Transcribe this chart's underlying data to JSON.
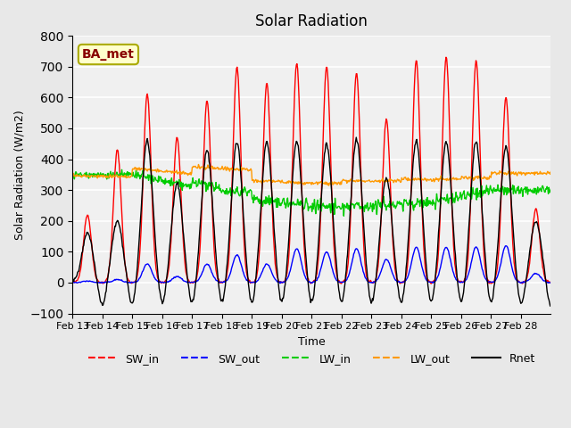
{
  "title": "Solar Radiation",
  "xlabel": "Time",
  "ylabel": "Solar Radiation (W/m2)",
  "ylim": [
    -100,
    800
  ],
  "yticks": [
    -100,
    0,
    100,
    200,
    300,
    400,
    500,
    600,
    700,
    800
  ],
  "background_color": "#e8e8e8",
  "plot_bg_color": "#f0f0f0",
  "annotation_text": "BA_met",
  "annotation_bg": "#ffffcc",
  "annotation_border": "#aaaa00",
  "annotation_text_color": "#880000",
  "colors": {
    "SW_in": "#ff0000",
    "SW_out": "#0000ff",
    "LW_in": "#00cc00",
    "LW_out": "#ff9900",
    "Rnet": "#000000"
  },
  "x_tick_labels": [
    "Feb 13",
    "Feb 14",
    "Feb 15",
    "Feb 16",
    "Feb 17",
    "Feb 18",
    "Feb 19",
    "Feb 20",
    "Feb 21",
    "Feb 22",
    "Feb 23",
    "Feb 24",
    "Feb 25",
    "Feb 26",
    "Feb 27",
    "Feb 28"
  ],
  "n_days": 16,
  "points_per_day": 48,
  "amplitudes_SW_in": [
    220,
    430,
    610,
    470,
    590,
    700,
    645,
    710,
    700,
    680,
    530,
    720,
    730,
    720,
    600,
    240
  ],
  "amplitudes_SW_out": [
    5,
    10,
    60,
    20,
    60,
    90,
    60,
    110,
    100,
    110,
    75,
    115,
    115,
    115,
    120,
    30
  ],
  "amplitudes_Rnet": [
    160,
    200,
    460,
    320,
    430,
    455,
    455,
    455,
    450,
    465,
    340,
    460,
    455,
    455,
    440,
    200
  ]
}
